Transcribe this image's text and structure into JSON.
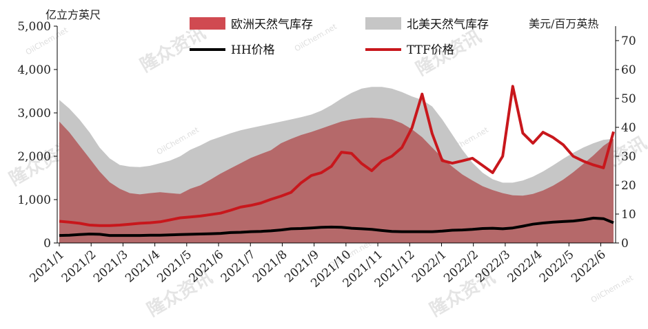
{
  "chart_data": {
    "type": "area",
    "y_left_unit": "亿立方英尺",
    "y_right_unit": "美元/百万英热",
    "ylim_left": [
      0,
      5000
    ],
    "ylim_right": [
      0,
      75
    ],
    "y_left_ticks": [
      "0",
      "1,000",
      "2,000",
      "3,000",
      "4,000",
      "5,000"
    ],
    "y_right_ticks": [
      "0",
      "10",
      "20",
      "30",
      "40",
      "50",
      "60",
      "70"
    ],
    "x_labels": [
      "2021/1",
      "2021/2",
      "2021/3",
      "2021/4",
      "2021/5",
      "2021/6",
      "2021/7",
      "2021/8",
      "2021/9",
      "2021/10",
      "2021/11",
      "2021/12",
      "2022/1",
      "2022/2",
      "2022/3",
      "2022/4",
      "2022/5",
      "2022/6"
    ],
    "grid": false,
    "legend_position": "top",
    "series": [
      {
        "name": "欧洲天然气库存",
        "kind": "area",
        "axis": "left",
        "color": "#b5696a",
        "values": [
          2800,
          2550,
          2250,
          1950,
          1650,
          1400,
          1250,
          1150,
          1120,
          1150,
          1170,
          1150,
          1130,
          1250,
          1330,
          1460,
          1600,
          1720,
          1840,
          1960,
          2050,
          2140,
          2300,
          2400,
          2490,
          2560,
          2640,
          2720,
          2800,
          2850,
          2880,
          2890,
          2880,
          2850,
          2760,
          2620,
          2440,
          2200,
          1970,
          1760,
          1580,
          1440,
          1310,
          1220,
          1150,
          1100,
          1090,
          1130,
          1210,
          1320,
          1460,
          1630,
          1820,
          2020,
          2240,
          2400
        ]
      },
      {
        "name": "北美天然气库存",
        "kind": "area",
        "axis": "left",
        "color": "#c6c6c6",
        "values": [
          3300,
          3100,
          2850,
          2550,
          2200,
          1950,
          1800,
          1760,
          1750,
          1780,
          1840,
          1900,
          2000,
          2150,
          2250,
          2370,
          2450,
          2530,
          2600,
          2650,
          2700,
          2750,
          2800,
          2850,
          2900,
          2960,
          3050,
          3180,
          3330,
          3460,
          3560,
          3600,
          3600,
          3560,
          3480,
          3380,
          3300,
          3150,
          2850,
          2500,
          2150,
          1850,
          1620,
          1470,
          1390,
          1390,
          1440,
          1530,
          1650,
          1790,
          1940,
          2080,
          2200,
          2300,
          2380,
          2400
        ]
      },
      {
        "name": "HH价格",
        "kind": "line",
        "axis": "right",
        "color": "#000000",
        "values": [
          2.6,
          2.7,
          2.9,
          3.1,
          3.0,
          2.6,
          2.6,
          2.6,
          2.6,
          2.7,
          2.7,
          2.8,
          2.9,
          3.0,
          3.1,
          3.2,
          3.3,
          3.6,
          3.7,
          3.9,
          4.0,
          4.2,
          4.5,
          4.9,
          5.0,
          5.2,
          5.4,
          5.5,
          5.4,
          5.1,
          4.9,
          4.7,
          4.3,
          4.0,
          3.9,
          3.9,
          3.9,
          3.9,
          4.1,
          4.4,
          4.5,
          4.7,
          5.0,
          5.1,
          4.9,
          5.2,
          5.8,
          6.5,
          6.9,
          7.2,
          7.4,
          7.6,
          8.0,
          8.6,
          8.4,
          7.0
        ]
      },
      {
        "name": "TTF价格",
        "kind": "line",
        "axis": "right",
        "color": "#c8171c",
        "values": [
          7.5,
          7.2,
          6.8,
          6.2,
          6.0,
          6.0,
          6.2,
          6.5,
          6.8,
          7.0,
          7.3,
          8.0,
          8.7,
          9.0,
          9.3,
          9.8,
          10.3,
          11.3,
          12.4,
          13.0,
          13.8,
          15.1,
          16.2,
          17.5,
          20.8,
          23.3,
          24.3,
          26.5,
          31.4,
          31.0,
          27.5,
          25.0,
          28.3,
          30.0,
          33.0,
          39.8,
          51.5,
          37.8,
          28.5,
          27.6,
          28.4,
          29.3,
          26.8,
          24.3,
          30.0,
          54.2,
          38.0,
          34.5,
          38.3,
          36.5,
          34.0,
          30.0,
          28.3,
          27.0,
          26.0,
          38.5
        ]
      }
    ]
  }
}
